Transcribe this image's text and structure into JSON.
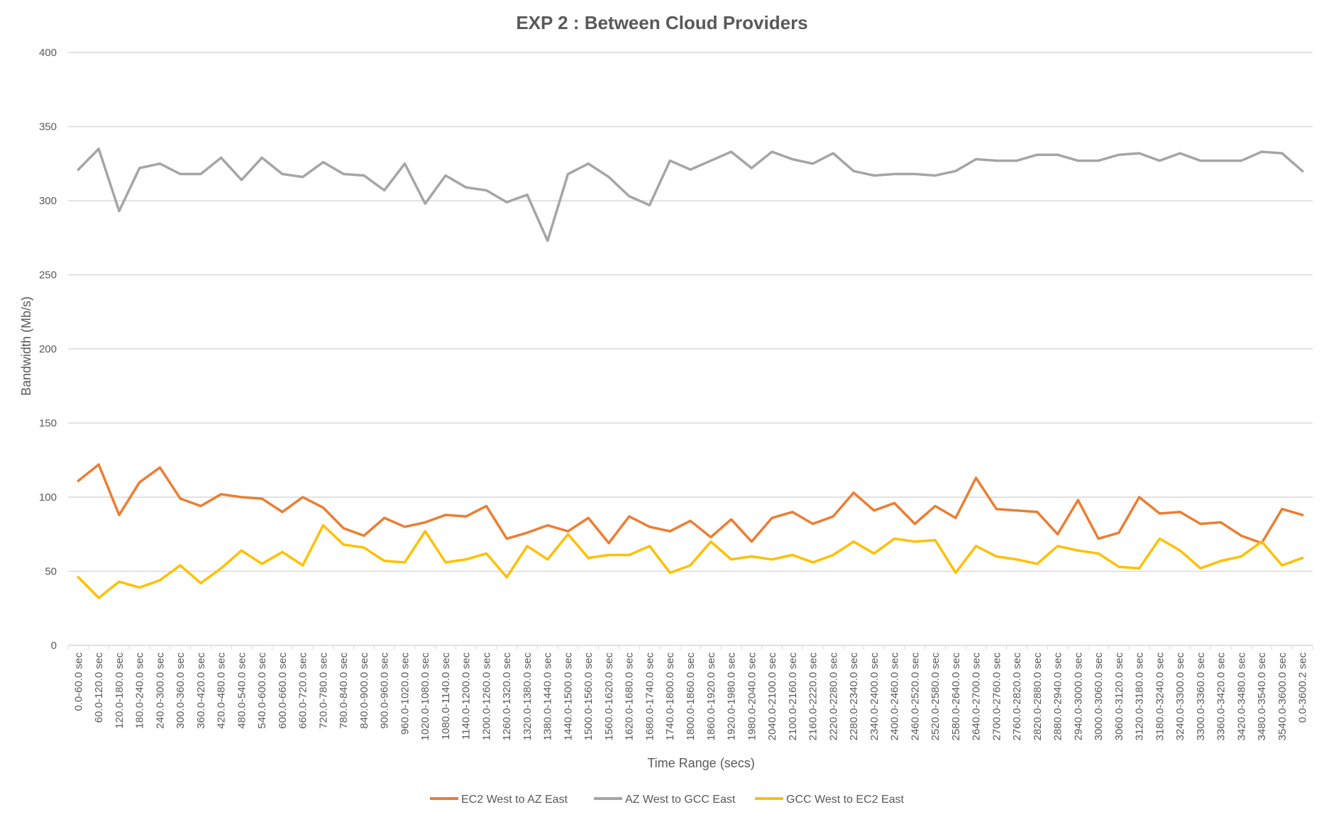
{
  "chart_data": {
    "type": "line",
    "title": "EXP 2 : Between Cloud Providers",
    "xlabel": "Time Range (secs)",
    "ylabel": "Bandwidth (Mb/s)",
    "ylim": [
      0,
      400
    ],
    "yticks": [
      0,
      50,
      100,
      150,
      200,
      250,
      300,
      350,
      400
    ],
    "grid": true,
    "legend_position": "bottom",
    "categories": [
      "0.0-60.0 sec",
      "60.0-120.0 sec",
      "120.0-180.0 sec",
      "180.0-240.0 sec",
      "240.0-300.0 sec",
      "300.0-360.0 sec",
      "360.0-420.0 sec",
      "420.0-480.0 sec",
      "480.0-540.0 sec",
      "540.0-600.0 sec",
      "600.0-660.0 sec",
      "660.0-720.0 sec",
      "720.0-780.0 sec",
      "780.0-840.0 sec",
      "840.0-900.0 sec",
      "900.0-960.0 sec",
      "960.0-1020.0 sec",
      "1020.0-1080.0 sec",
      "1080.0-1140.0 sec",
      "1140.0-1200.0 sec",
      "1200.0-1260.0 sec",
      "1260.0-1320.0 sec",
      "1320.0-1380.0 sec",
      "1380.0-1440.0 sec",
      "1440.0-1500.0 sec",
      "1500.0-1560.0 sec",
      "1560.0-1620.0 sec",
      "1620.0-1680.0 sec",
      "1680.0-1740.0 sec",
      "1740.0-1800.0 sec",
      "1800.0-1860.0 sec",
      "1860.0-1920.0 sec",
      "1920.0-1980.0 sec",
      "1980.0-2040.0 sec",
      "2040.0-2100.0 sec",
      "2100.0-2160.0 sec",
      "2160.0-2220.0 sec",
      "2220.0-2280.0 sec",
      "2280.0-2340.0 sec",
      "2340.0-2400.0 sec",
      "2400.0-2460.0 sec",
      "2460.0-2520.0 sec",
      "2520.0-2580.0 sec",
      "2580.0-2640.0 sec",
      "2640.0-2700.0 sec",
      "2700.0-2760.0 sec",
      "2760.0-2820.0 sec",
      "2820.0-2880.0 sec",
      "2880.0-2940.0 sec",
      "2940.0-3000.0 sec",
      "3000.0-3060.0 sec",
      "3060.0-3120.0 sec",
      "3120.0-3180.0 sec",
      "3180.0-3240.0 sec",
      "3240.0-3300.0 sec",
      "3300.0-3360.0 sec",
      "3360.0-3420.0 sec",
      "3420.0-3480.0 sec",
      "3480.0-3540.0 sec",
      "3540.0-3600.0 sec",
      "0.0-3600.2 sec"
    ],
    "series": [
      {
        "name": "EC2 West to AZ East",
        "color": "#ED7D31",
        "values": [
          111,
          122,
          88,
          110,
          120,
          99,
          94,
          102,
          100,
          99,
          90,
          100,
          93,
          79,
          74,
          86,
          80,
          83,
          88,
          87,
          94,
          72,
          76,
          81,
          77,
          86,
          69,
          87,
          80,
          77,
          84,
          73,
          85,
          70,
          86,
          90,
          82,
          87,
          103,
          91,
          96,
          82,
          94,
          86,
          113,
          92,
          91,
          90,
          75,
          98,
          72,
          76,
          100,
          89,
          90,
          82,
          83,
          74,
          69,
          92,
          88
        ]
      },
      {
        "name": "AZ West to GCC East",
        "color": "#A5A5A5",
        "values": [
          321,
          335,
          293,
          322,
          325,
          318,
          318,
          329,
          314,
          329,
          318,
          316,
          326,
          318,
          317,
          307,
          325,
          298,
          317,
          309,
          307,
          299,
          304,
          273,
          318,
          325,
          316,
          303,
          297,
          327,
          321,
          327,
          333,
          322,
          333,
          328,
          325,
          332,
          320,
          317,
          318,
          318,
          317,
          320,
          328,
          327,
          327,
          331,
          331,
          327,
          327,
          331,
          332,
          327,
          332,
          327,
          327,
          327,
          333,
          332,
          320
        ]
      },
      {
        "name": "GCC West to EC2 East",
        "color": "#FFC000",
        "values": [
          46,
          32,
          43,
          39,
          44,
          54,
          42,
          52,
          64,
          55,
          63,
          54,
          81,
          68,
          66,
          57,
          56,
          77,
          56,
          58,
          62,
          46,
          67,
          58,
          75,
          59,
          61,
          61,
          67,
          49,
          54,
          70,
          58,
          60,
          58,
          61,
          56,
          61,
          70,
          62,
          72,
          70,
          71,
          49,
          67,
          60,
          58,
          55,
          67,
          64,
          62,
          53,
          52,
          72,
          64,
          52,
          57,
          60,
          70,
          54,
          59
        ]
      }
    ]
  }
}
